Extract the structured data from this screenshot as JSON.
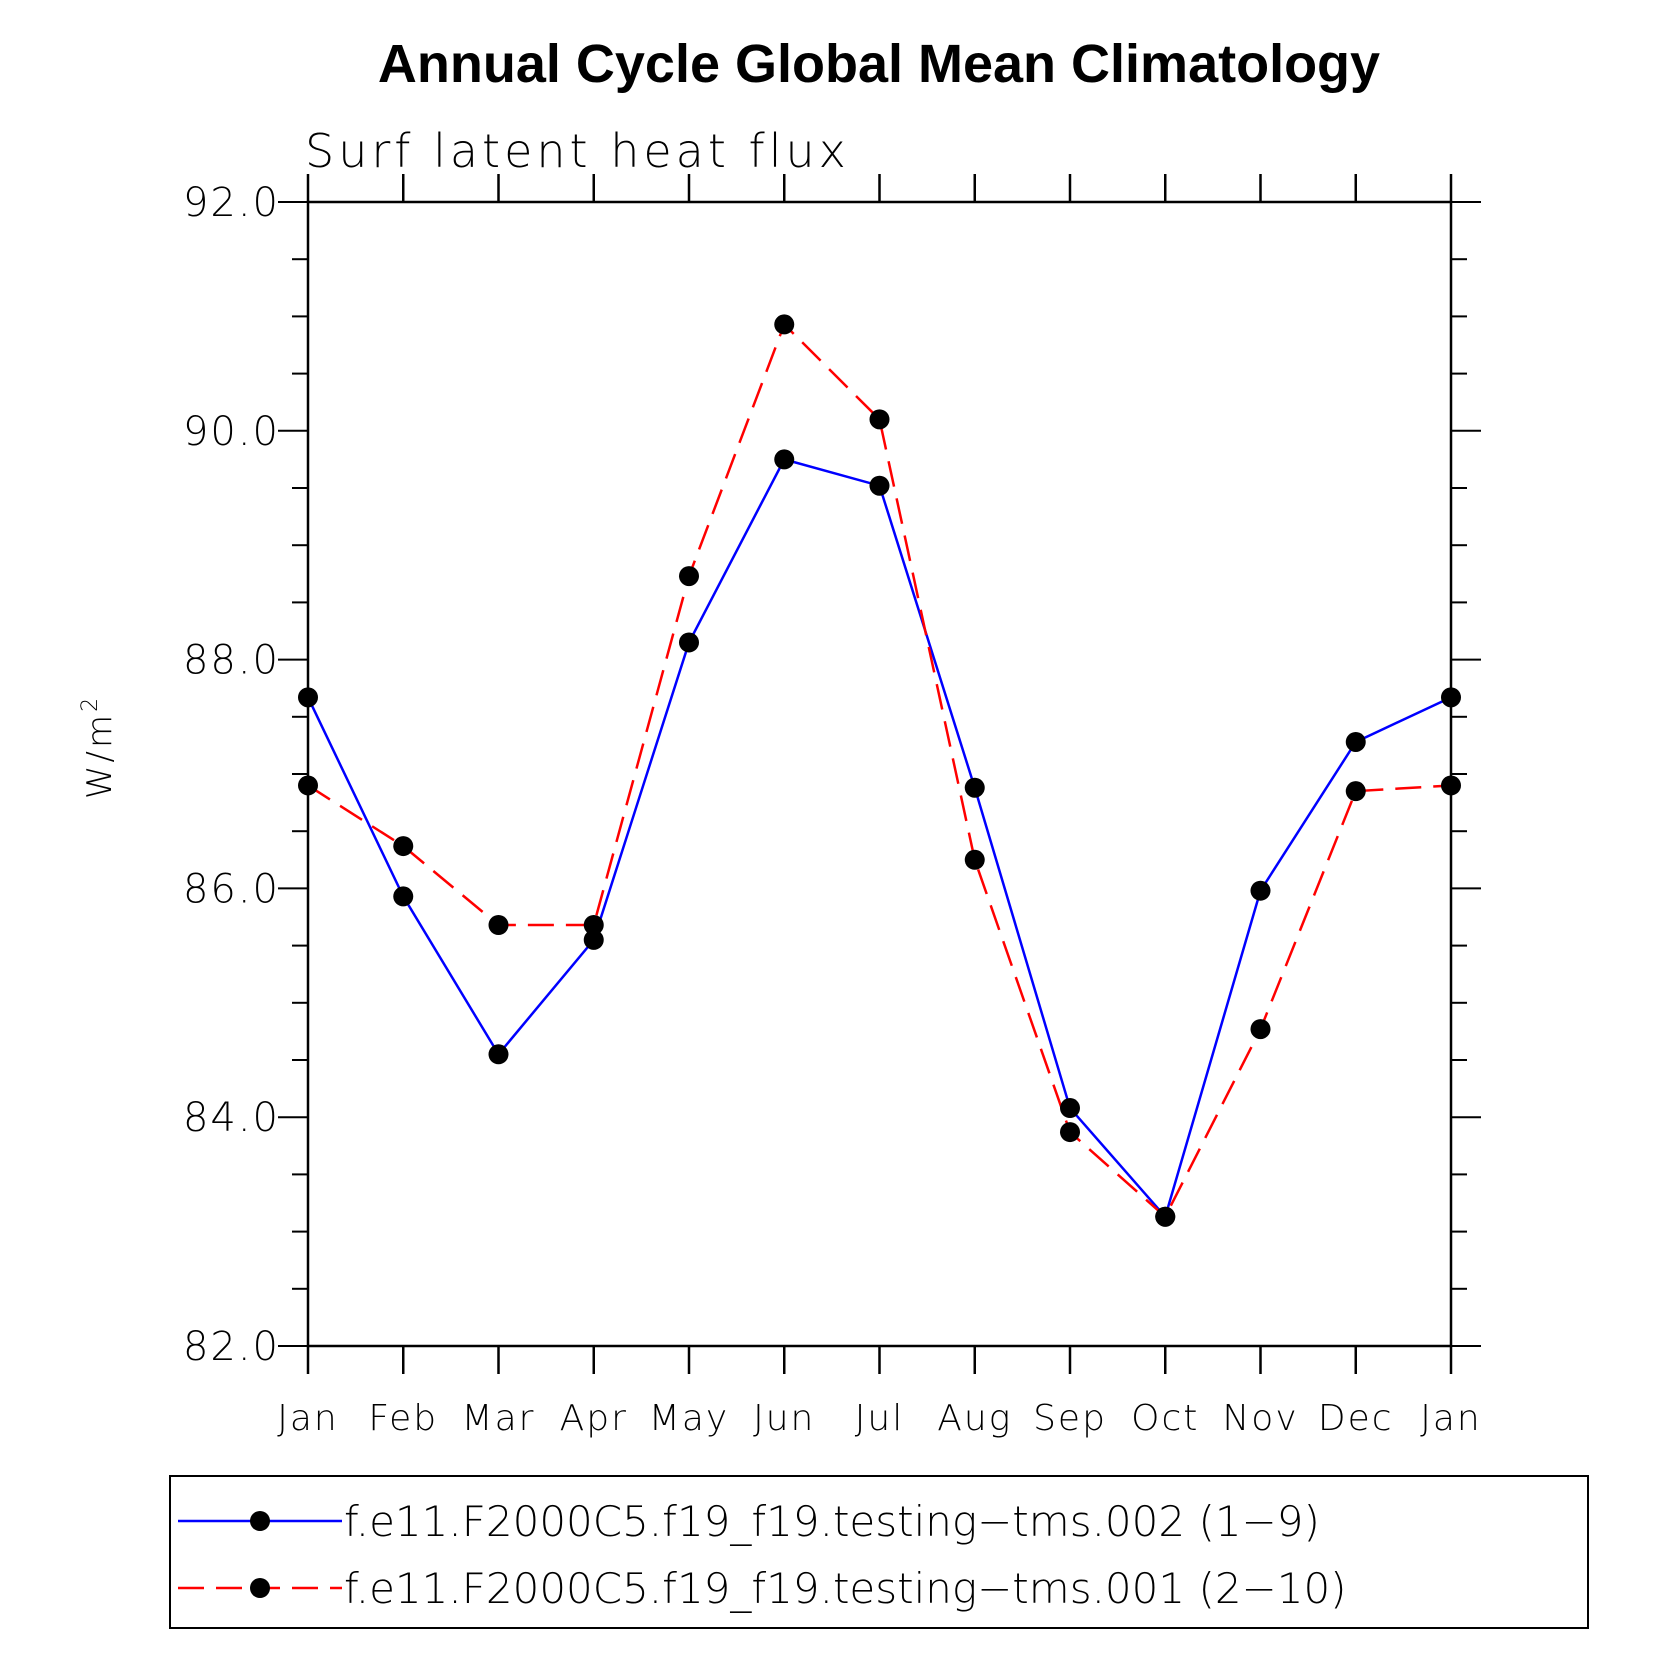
{
  "chart_data": {
    "type": "line",
    "title": "Annual Cycle Global Mean Climatology",
    "subtitle": "Surf latent heat flux",
    "ylabel": "W/m",
    "ylabel_superscript": "2",
    "ylim": [
      82.0,
      92.0
    ],
    "yticks": [
      "82.0",
      "84.0",
      "86.0",
      "88.0",
      "90.0",
      "92.0"
    ],
    "categories": [
      "Jan",
      "Feb",
      "Mar",
      "Apr",
      "May",
      "Jun",
      "Jul",
      "Aug",
      "Sep",
      "Oct",
      "Nov",
      "Dec",
      "Jan"
    ],
    "marker": "filled-circle",
    "series": [
      {
        "name": "f.e11.F2000C5.f19_f19.testing−tms.002 (1−9)",
        "color": "#0000ff",
        "style": "solid",
        "values": [
          87.67,
          85.93,
          84.55,
          85.55,
          88.15,
          89.75,
          89.52,
          86.88,
          84.08,
          83.13,
          85.98,
          87.28,
          87.67
        ]
      },
      {
        "name": "f.e11.F2000C5.f19_f19.testing−tms.001 (2−10)",
        "color": "#ff0000",
        "style": "dashed",
        "values": [
          86.9,
          86.37,
          85.68,
          85.68,
          88.73,
          90.93,
          90.1,
          86.25,
          83.87,
          83.13,
          84.77,
          86.85,
          86.9
        ]
      }
    ],
    "legend": "bottom",
    "grid": false
  }
}
